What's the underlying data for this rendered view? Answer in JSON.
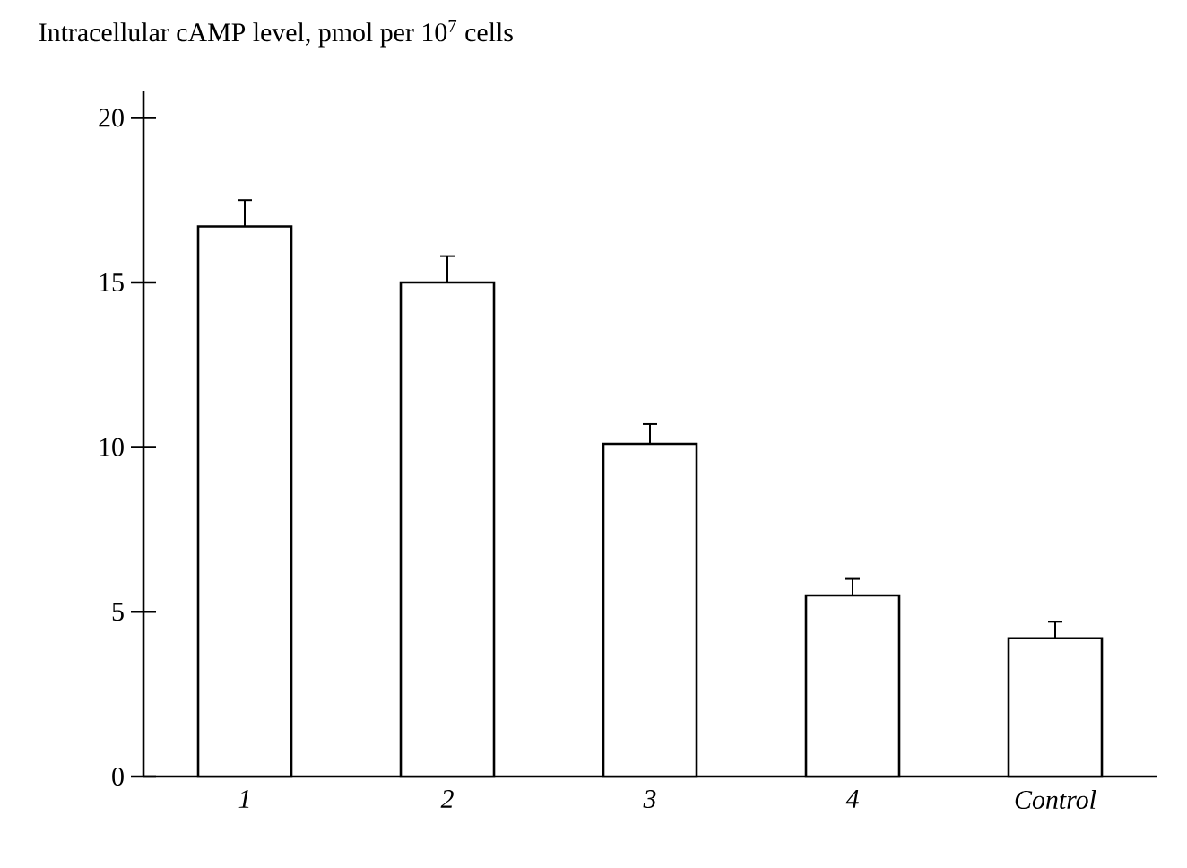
{
  "chart_data": {
    "type": "bar",
    "title": "Intracellular cAMP level, pmol per 10$^{7}$ cells",
    "categories": [
      "1",
      "2",
      "3",
      "4",
      "Control"
    ],
    "values": [
      16.7,
      15.0,
      10.1,
      5.5,
      4.2
    ],
    "errors": [
      0.8,
      0.8,
      0.6,
      0.5,
      0.5
    ],
    "color": "#ffffff",
    "ylim": [
      0,
      20.8
    ],
    "yticks": [
      0,
      5,
      10,
      15,
      20
    ]
  }
}
